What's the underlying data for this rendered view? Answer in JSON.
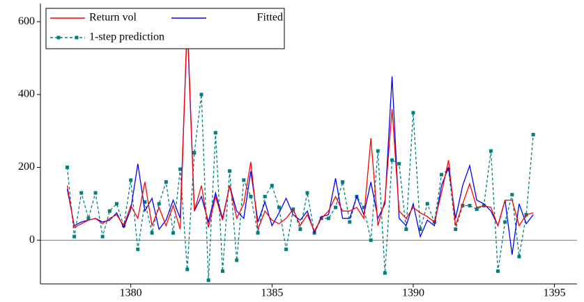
{
  "chart_data": {
    "type": "line",
    "x": [
      1377.75,
      1378,
      1378.25,
      1378.5,
      1378.75,
      1379,
      1379.25,
      1379.5,
      1379.75,
      1380,
      1380.25,
      1380.5,
      1380.75,
      1381,
      1381.25,
      1381.5,
      1381.75,
      1382,
      1382.25,
      1382.5,
      1382.75,
      1383,
      1383.25,
      1383.5,
      1383.75,
      1384,
      1384.25,
      1384.5,
      1384.75,
      1385,
      1385.25,
      1385.5,
      1385.75,
      1386,
      1386.25,
      1386.5,
      1386.75,
      1387,
      1387.25,
      1387.5,
      1387.75,
      1388,
      1388.25,
      1388.5,
      1388.75,
      1389,
      1389.25,
      1389.5,
      1389.75,
      1390,
      1390.25,
      1390.5,
      1390.75,
      1391,
      1391.25,
      1391.5,
      1391.75,
      1392,
      1392.25,
      1392.5,
      1392.75,
      1393,
      1393.25,
      1393.5,
      1393.75,
      1394,
      1394.25
    ],
    "series": [
      {
        "name": "Return vol",
        "color": "#ff0000",
        "style": "solid",
        "marker": "none",
        "values": [
          150,
          35,
          45,
          55,
          60,
          45,
          60,
          70,
          40,
          95,
          60,
          160,
          40,
          90,
          40,
          95,
          30,
          610,
          80,
          150,
          35,
          120,
          55,
          150,
          60,
          100,
          215,
          30,
          80,
          55,
          45,
          60,
          85,
          40,
          70,
          25,
          60,
          80,
          120,
          80,
          80,
          90,
          60,
          280,
          40,
          110,
          360,
          80,
          60,
          90,
          75,
          65,
          50,
          130,
          220,
          40,
          100,
          155,
          90,
          95,
          90,
          40,
          110,
          110,
          40,
          70,
          75
        ]
      },
      {
        "name": "Fitted",
        "color": "#0000ff",
        "style": "solid",
        "marker": "none",
        "values": [
          140,
          40,
          50,
          55,
          60,
          50,
          55,
          75,
          35,
          85,
          210,
          80,
          115,
          30,
          55,
          110,
          60,
          590,
          80,
          120,
          50,
          130,
          60,
          150,
          80,
          60,
          190,
          50,
          105,
          40,
          75,
          115,
          70,
          55,
          80,
          20,
          65,
          70,
          170,
          60,
          60,
          120,
          70,
          160,
          60,
          100,
          450,
          60,
          40,
          100,
          10,
          55,
          40,
          150,
          200,
          60,
          150,
          205,
          110,
          100,
          80,
          40,
          110,
          -40,
          100,
          45,
          70
        ]
      },
      {
        "name": "1-step prediction",
        "color": "#008080",
        "style": "dashed",
        "marker": "square",
        "values": [
          200,
          10,
          130,
          60,
          130,
          10,
          80,
          100,
          40,
          165,
          -25,
          105,
          20,
          100,
          160,
          20,
          195,
          -80,
          240,
          400,
          -110,
          295,
          -85,
          190,
          -55,
          165,
          120,
          20,
          120,
          150,
          90,
          -25,
          85,
          30,
          130,
          20,
          60,
          60,
          90,
          160,
          50,
          120,
          90,
          0,
          245,
          -90,
          220,
          210,
          30,
          350,
          30,
          100,
          50,
          180,
          195,
          30,
          95,
          95,
          85,
          95,
          245,
          -85,
          50,
          125,
          -45,
          70,
          290
        ]
      }
    ],
    "xlim": [
      1376.8,
      1395.8
    ],
    "xticks": [
      1380,
      1385,
      1390,
      1395
    ],
    "ylim": [
      -120,
      650
    ],
    "yticks": [
      0,
      200,
      400,
      600
    ],
    "zero_line": true,
    "legend": "top-left"
  }
}
